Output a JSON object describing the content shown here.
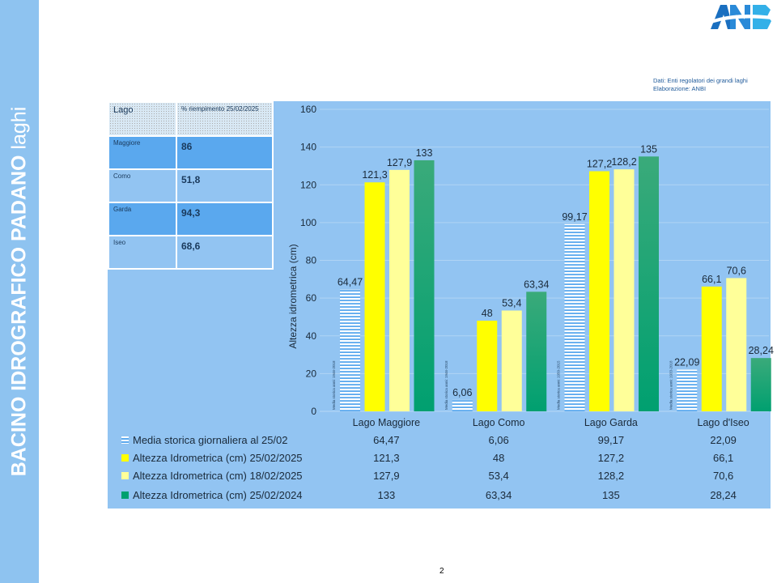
{
  "sidebar": {
    "title_bold": "BACINO IDROGRAFICO PADANO",
    "title_light": "laghi"
  },
  "logo": {
    "text": "ANBI"
  },
  "source": {
    "line1": "Dati: Enti regolatori dei grandi laghi",
    "line2": "Elaborazione: ANBI"
  },
  "fill_table": {
    "header_lake": "Lago",
    "header_pct": "% riempimento 25/02/2025",
    "rows": [
      {
        "lake": "Maggiore",
        "pct": "86"
      },
      {
        "lake": "Como",
        "pct": "51,8"
      },
      {
        "lake": "Garda",
        "pct": "94,3"
      },
      {
        "lake": "Iseo",
        "pct": "68,6"
      }
    ]
  },
  "page_number": "2",
  "chart_data": {
    "type": "bar",
    "ylabel": "Altezza idrometrica (cm)",
    "ylim": [
      0,
      160
    ],
    "yticks": [
      "0",
      "20",
      "40",
      "60",
      "80",
      "100",
      "120",
      "140",
      "160"
    ],
    "grid": true,
    "categories": [
      "Lago Maggiore",
      "Lago Como",
      "Lago Garda",
      "Lago d'Iseo"
    ],
    "period_notes": [
      "Media storica anni: 1946-2018",
      "Media storica anni: 1946-2018",
      "Media storica anni: 1950-2015",
      "Media storica anni: 1933-2018"
    ],
    "series": [
      {
        "name": "Media storica  giornaliera al 25/02",
        "values": [
          64.47,
          6.06,
          99.17,
          22.09
        ],
        "labels": [
          "64,47",
          "6,06",
          "99,17",
          "22,09"
        ],
        "color": "#ffffff",
        "pattern": "stripes"
      },
      {
        "name": "Altezza Idrometrica (cm) 25/02/2025",
        "values": [
          121.3,
          48,
          127.2,
          66.1
        ],
        "labels": [
          "121,3",
          "48",
          "127,2",
          "66,1"
        ],
        "color": "#ffff00"
      },
      {
        "name": "Altezza Idrometrica (cm) 18/02/2025",
        "values": [
          127.9,
          53.4,
          128.2,
          70.6
        ],
        "labels": [
          "127,9",
          "53,4",
          "128,2",
          "70,6"
        ],
        "color": "#ffff99"
      },
      {
        "name": "Altezza Idrometrica (cm) 25/02/2024",
        "values": [
          133,
          63.34,
          135,
          28.24
        ],
        "labels": [
          "133",
          "63,34",
          "135",
          "28,24"
        ],
        "color": "#00a070"
      }
    ]
  }
}
